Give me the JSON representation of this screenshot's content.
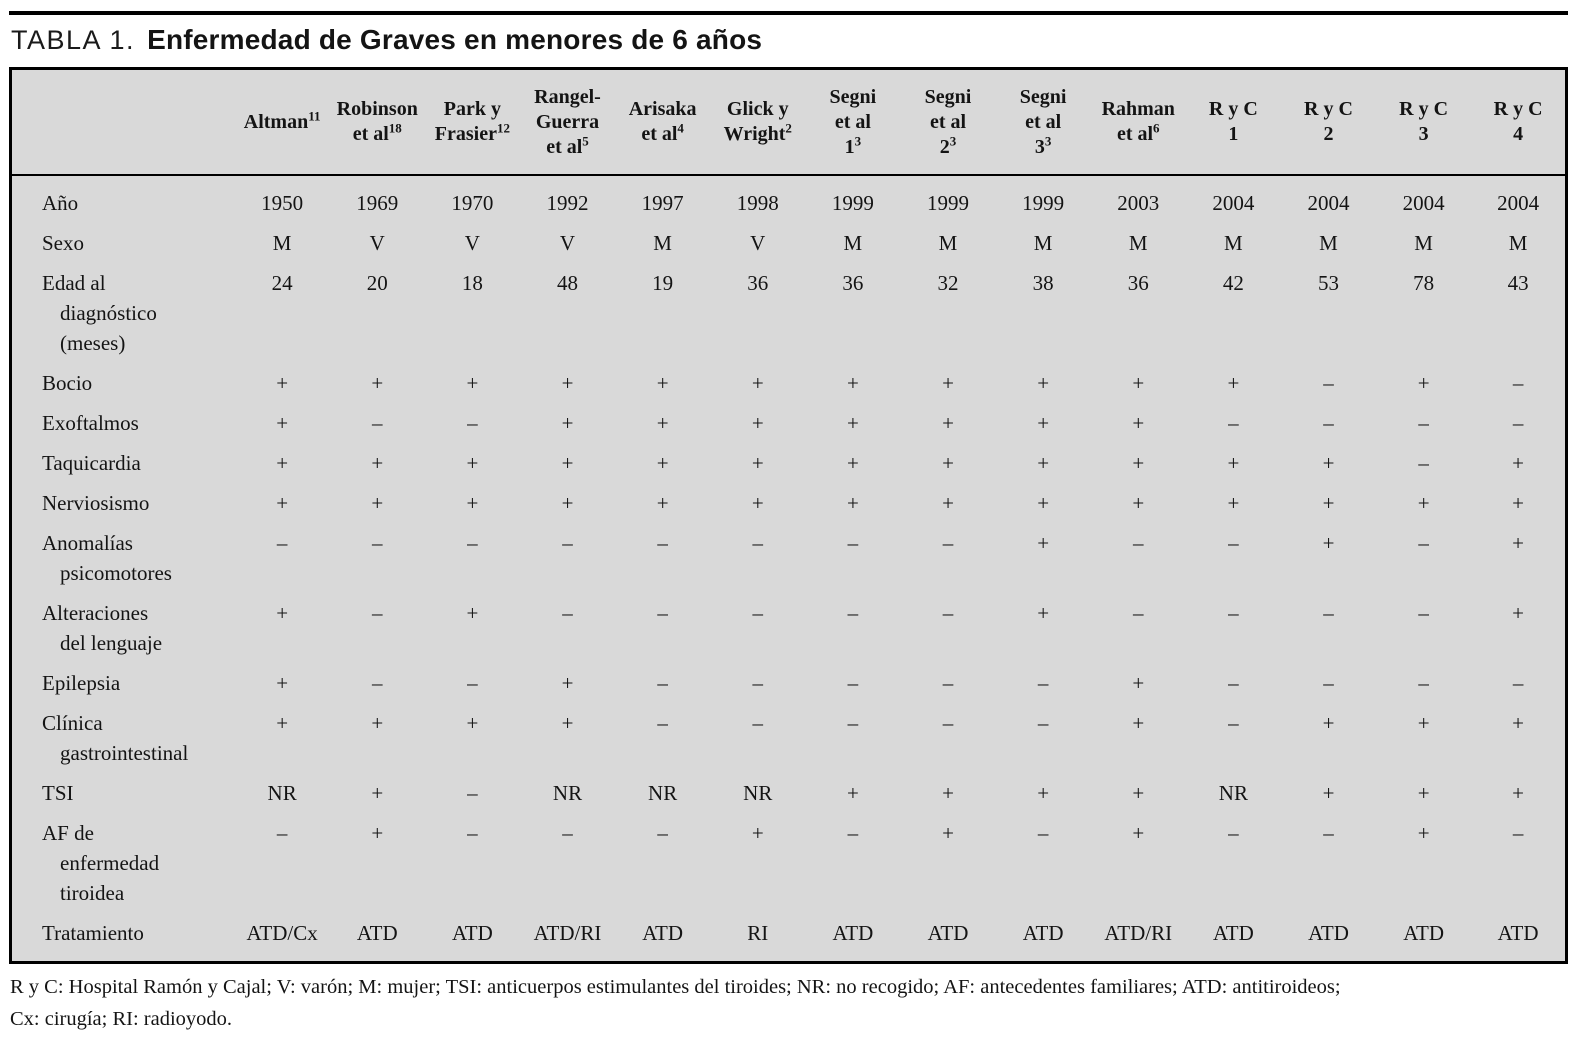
{
  "title": {
    "prefix": "TABLA 1.",
    "text": "Enfermedad de Graves en menores de 6 años"
  },
  "table": {
    "columns": [
      {
        "lines": [
          [
            "Altman",
            "11"
          ]
        ]
      },
      {
        "lines": [
          [
            "Robinson",
            ""
          ],
          [
            "et al",
            "18"
          ]
        ]
      },
      {
        "lines": [
          [
            "Park y",
            ""
          ],
          [
            "Frasier",
            "12"
          ]
        ]
      },
      {
        "lines": [
          [
            "Rangel-",
            ""
          ],
          [
            "Guerra",
            ""
          ],
          [
            "et al",
            "5"
          ]
        ]
      },
      {
        "lines": [
          [
            "Arisaka",
            ""
          ],
          [
            "et al",
            "4"
          ]
        ]
      },
      {
        "lines": [
          [
            "Glick y",
            ""
          ],
          [
            "Wright",
            "2"
          ]
        ]
      },
      {
        "lines": [
          [
            "Segni",
            ""
          ],
          [
            "et al",
            ""
          ],
          [
            "1",
            "3"
          ]
        ]
      },
      {
        "lines": [
          [
            "Segni",
            ""
          ],
          [
            "et al",
            ""
          ],
          [
            "2",
            "3"
          ]
        ]
      },
      {
        "lines": [
          [
            "Segni",
            ""
          ],
          [
            "et al",
            ""
          ],
          [
            "3",
            "3"
          ]
        ]
      },
      {
        "lines": [
          [
            "Rahman",
            ""
          ],
          [
            "et al",
            "6"
          ]
        ]
      },
      {
        "lines": [
          [
            "R y C",
            ""
          ],
          [
            "1",
            ""
          ]
        ]
      },
      {
        "lines": [
          [
            "R y C",
            ""
          ],
          [
            "2",
            ""
          ]
        ]
      },
      {
        "lines": [
          [
            "R y C",
            ""
          ],
          [
            "3",
            ""
          ]
        ]
      },
      {
        "lines": [
          [
            "R y C",
            ""
          ],
          [
            "4",
            ""
          ]
        ]
      }
    ],
    "rows": [
      {
        "label_lines": [
          "Año"
        ],
        "values": [
          "1950",
          "1969",
          "1970",
          "1992",
          "1997",
          "1998",
          "1999",
          "1999",
          "1999",
          "2003",
          "2004",
          "2004",
          "2004",
          "2004"
        ]
      },
      {
        "label_lines": [
          "Sexo"
        ],
        "values": [
          "M",
          "V",
          "V",
          "V",
          "M",
          "V",
          "M",
          "M",
          "M",
          "M",
          "M",
          "M",
          "M",
          "M"
        ]
      },
      {
        "label_lines": [
          "Edad al",
          "diagnóstico",
          "(meses)"
        ],
        "values": [
          "24",
          "20",
          "18",
          "48",
          "19",
          "36",
          "36",
          "32",
          "38",
          "36",
          "42",
          "53",
          "78",
          "43"
        ]
      },
      {
        "label_lines": [
          "Bocio"
        ],
        "values": [
          "+",
          "+",
          "+",
          "+",
          "+",
          "+",
          "+",
          "+",
          "+",
          "+",
          "+",
          "–",
          "+",
          "–"
        ]
      },
      {
        "label_lines": [
          "Exoftalmos"
        ],
        "values": [
          "+",
          "–",
          "–",
          "+",
          "+",
          "+",
          "+",
          "+",
          "+",
          "+",
          "–",
          "–",
          "–",
          "–"
        ]
      },
      {
        "label_lines": [
          "Taquicardia"
        ],
        "values": [
          "+",
          "+",
          "+",
          "+",
          "+",
          "+",
          "+",
          "+",
          "+",
          "+",
          "+",
          "+",
          "–",
          "+"
        ]
      },
      {
        "label_lines": [
          "Nerviosismo"
        ],
        "values": [
          "+",
          "+",
          "+",
          "+",
          "+",
          "+",
          "+",
          "+",
          "+",
          "+",
          "+",
          "+",
          "+",
          "+"
        ]
      },
      {
        "label_lines": [
          "Anomalías",
          "psicomotores"
        ],
        "values": [
          "–",
          "–",
          "–",
          "–",
          "–",
          "–",
          "–",
          "–",
          "+",
          "–",
          "–",
          "+",
          "–",
          "+"
        ]
      },
      {
        "label_lines": [
          "Alteraciones",
          "del lenguaje"
        ],
        "values": [
          "+",
          "–",
          "+",
          "–",
          "–",
          "–",
          "–",
          "–",
          "+",
          "–",
          "–",
          "–",
          "–",
          "+"
        ]
      },
      {
        "label_lines": [
          "Epilepsia"
        ],
        "values": [
          "+",
          "–",
          "–",
          "+",
          "–",
          "–",
          "–",
          "–",
          "–",
          "+",
          "–",
          "–",
          "–",
          "–"
        ]
      },
      {
        "label_lines": [
          "Clínica",
          "gastrointestinal"
        ],
        "values": [
          "+",
          "+",
          "+",
          "+",
          "–",
          "–",
          "–",
          "–",
          "–",
          "+",
          "–",
          "+",
          "+",
          "+"
        ]
      },
      {
        "label_lines": [
          "TSI"
        ],
        "values": [
          "NR",
          "+",
          "–",
          "NR",
          "NR",
          "NR",
          "+",
          "+",
          "+",
          "+",
          "NR",
          "+",
          "+",
          "+"
        ]
      },
      {
        "label_lines": [
          "AF de",
          "enfermedad",
          "tiroidea"
        ],
        "values": [
          "–",
          "+",
          "–",
          "–",
          "–",
          "+",
          "–",
          "+",
          "–",
          "+",
          "–",
          "–",
          "+",
          "–"
        ]
      },
      {
        "label_lines": [
          "Tratamiento"
        ],
        "values": [
          "ATD/Cx",
          "ATD",
          "ATD",
          "ATD/RI",
          "ATD",
          "RI",
          "ATD",
          "ATD",
          "ATD",
          "ATD/RI",
          "ATD",
          "ATD",
          "ATD",
          "ATD"
        ]
      }
    ]
  },
  "footnote": {
    "line1": "R y C: Hospital Ramón y Cajal; V: varón; M: mujer; TSI: anticuerpos estimulantes del tiroides; NR: no recogido; AF: antecedentes familiares; ATD: antitiroideos;",
    "line2": "Cx: cirugía; RI: radioyodo."
  },
  "colors": {
    "table_background": "#d9d9d9",
    "border": "#000000",
    "text": "#141414",
    "page_background": "#ffffff"
  }
}
